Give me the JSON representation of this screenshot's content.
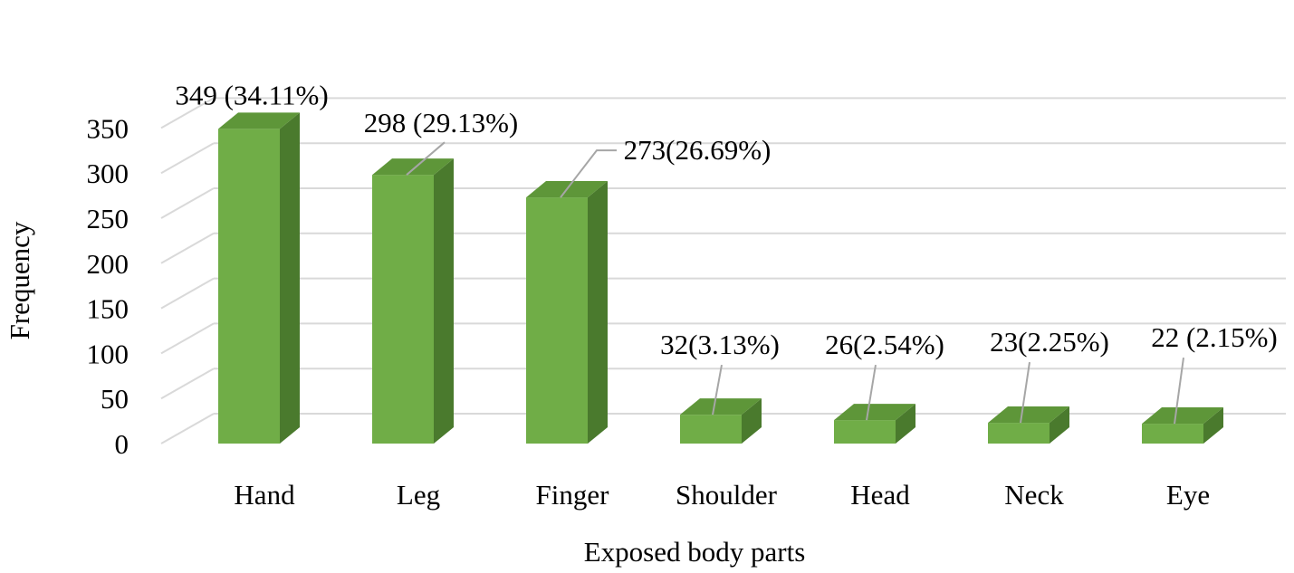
{
  "chart_data": {
    "type": "bar",
    "style": "3d-column",
    "categories": [
      "Hand",
      "Leg",
      "Finger",
      "Shoulder",
      "Head",
      "Neck",
      "Eye"
    ],
    "values": [
      349,
      298,
      273,
      32,
      26,
      23,
      22
    ],
    "data_labels": [
      "349 (34.11%)",
      "298 (29.13%)",
      "273(26.69%)",
      "32(3.13%)",
      "26(2.54%)",
      "23(2.25%)",
      "22 (2.15%)"
    ],
    "xlabel": "Exposed body parts",
    "ylabel": "Frequency",
    "ylim": [
      0,
      350
    ],
    "yticks": [
      "0",
      "50",
      "100",
      "150",
      "200",
      "250",
      "300",
      "350"
    ],
    "grid": true,
    "legend": "none",
    "colors": {
      "bar_front": "#70AD47",
      "bar_top": "#5E9639",
      "bar_side": "#4A7A2D",
      "gridline": "#D9D9D9",
      "leader_line": "#A6A6A6"
    }
  }
}
